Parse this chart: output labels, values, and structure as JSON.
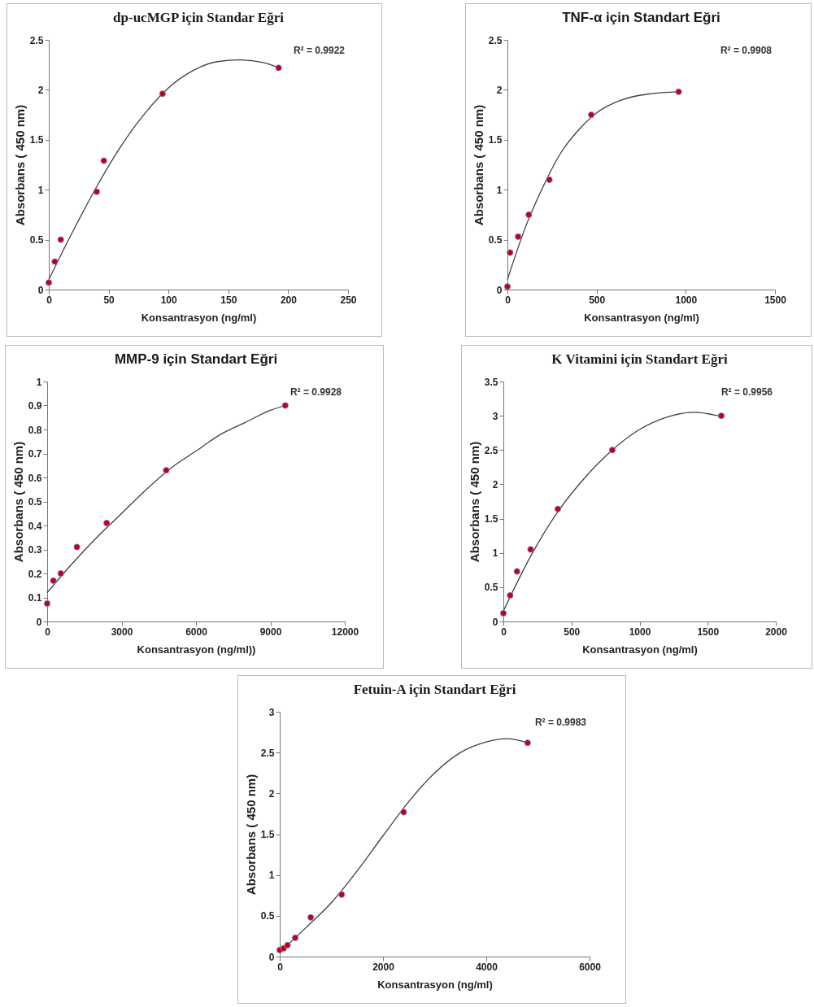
{
  "chart_data": [
    {
      "type": "scatter",
      "title": "dp-ucMGP için Standar Eğri",
      "xlabel": "Konsantrasyon (ng/ml)",
      "ylabel": "Absorbans ( 450 nm)",
      "xlim": [
        0,
        250
      ],
      "xticks": [
        0,
        50,
        100,
        150,
        200,
        250
      ],
      "ylim": [
        0,
        2.5
      ],
      "yticks": [
        0,
        0.5,
        1,
        1.5,
        2,
        2.5
      ],
      "grid": false,
      "marker": "circle",
      "annotations": [
        "R² = 0.9922"
      ],
      "series": [
        {
          "type": "line",
          "marker": "none",
          "color": "#404040",
          "x": [
            0,
            20,
            40,
            60,
            80,
            100,
            120,
            140,
            160,
            180,
            192
          ],
          "values": [
            0.1,
            0.58,
            1.03,
            1.43,
            1.76,
            2.02,
            2.19,
            2.28,
            2.3,
            2.27,
            2.22
          ]
        },
        {
          "type": "scatter",
          "color": "#c00018",
          "x": [
            0,
            5,
            10,
            40,
            46,
            95,
            192
          ],
          "values": [
            0.07,
            0.28,
            0.5,
            0.98,
            1.29,
            1.96,
            2.22
          ]
        }
      ]
    },
    {
      "type": "scatter",
      "title": "TNF-α  için Standart Eğri",
      "xlabel": "Konsantrasyon  (ng/ml)",
      "ylabel": "Absorbans ( 450 nm)",
      "xlim": [
        0,
        1500
      ],
      "xticks": [
        0,
        500,
        1000,
        1500
      ],
      "ylim": [
        0,
        2.5
      ],
      "yticks": [
        0,
        0.5,
        1,
        1.5,
        2,
        2.5
      ],
      "grid": false,
      "marker": "circle",
      "annotations": [
        "R² = 0.9908"
      ],
      "series": [
        {
          "type": "line",
          "marker": "none",
          "color": "#404040",
          "x": [
            0,
            100,
            200,
            300,
            400,
            500,
            600,
            700,
            800,
            960
          ],
          "values": [
            0.1,
            0.62,
            1.03,
            1.37,
            1.6,
            1.77,
            1.87,
            1.93,
            1.96,
            1.98
          ]
        },
        {
          "type": "scatter",
          "color": "#c00018",
          "x": [
            0,
            15,
            60,
            120,
            235,
            470,
            960
          ],
          "values": [
            0.03,
            0.37,
            0.53,
            0.75,
            1.1,
            1.75,
            1.98
          ]
        }
      ]
    },
    {
      "type": "scatter",
      "title": "MMP-9  için Standart Eğri",
      "xlabel": "Konsantrasyon  (ng/ml))",
      "ylabel": "Absorbans ( 450 nm)",
      "xlim": [
        0,
        12000
      ],
      "xticks": [
        0,
        3000,
        6000,
        9000,
        12000
      ],
      "ylim": [
        0,
        1
      ],
      "yticks": [
        0,
        0.1,
        0.2,
        0.3,
        0.4,
        0.5,
        0.6,
        0.7,
        0.8,
        0.9,
        1
      ],
      "grid": false,
      "marker": "circle",
      "annotations": [
        "R² = 0.9928"
      ],
      "series": [
        {
          "type": "line",
          "marker": "none",
          "color": "#404040",
          "x": [
            0,
            1000,
            2000,
            3000,
            4000,
            5000,
            6000,
            7000,
            8000,
            9000,
            9600
          ],
          "values": [
            0.12,
            0.24,
            0.35,
            0.45,
            0.55,
            0.64,
            0.71,
            0.78,
            0.83,
            0.88,
            0.9
          ]
        },
        {
          "type": "scatter",
          "color": "#c00018",
          "x": [
            0,
            250,
            550,
            1200,
            2400,
            4800,
            9600
          ],
          "values": [
            0.075,
            0.17,
            0.2,
            0.31,
            0.41,
            0.63,
            0.9
          ]
        }
      ]
    },
    {
      "type": "scatter",
      "title": "K Vitamini için Standart Eğri",
      "xlabel": "Konsantrasyon  (ng/ml)",
      "ylabel": "Absorbans ( 450 nm)",
      "xlim": [
        0,
        2000
      ],
      "xticks": [
        0,
        500,
        1000,
        1500,
        2000
      ],
      "ylim": [
        0,
        3.5
      ],
      "yticks": [
        0,
        0.5,
        1,
        1.5,
        2,
        2.5,
        3,
        3.5
      ],
      "grid": false,
      "marker": "circle",
      "annotations": [
        "R² = 0.9956"
      ],
      "series": [
        {
          "type": "line",
          "marker": "none",
          "color": "#404040",
          "x": [
            0,
            200,
            400,
            600,
            800,
            1000,
            1200,
            1400,
            1600
          ],
          "values": [
            0.15,
            0.95,
            1.6,
            2.1,
            2.5,
            2.8,
            2.98,
            3.05,
            2.99
          ]
        },
        {
          "type": "scatter",
          "color": "#c00018",
          "x": [
            0,
            50,
            100,
            200,
            400,
            800,
            1600
          ],
          "values": [
            0.12,
            0.38,
            0.73,
            1.05,
            1.64,
            2.5,
            3.0
          ]
        }
      ]
    },
    {
      "type": "scatter",
      "title": "Fetuin-A için Standart Eğri",
      "xlabel": "Konsantrasyon  (ng/ml)",
      "ylabel": "Absorbans  ( 450 nm)",
      "xlim": [
        0,
        6000
      ],
      "xticks": [
        0,
        2000,
        4000,
        6000
      ],
      "ylim": [
        0,
        3
      ],
      "yticks": [
        0,
        0.5,
        1,
        1.5,
        2,
        2.5,
        3
      ],
      "grid": false,
      "marker": "circle",
      "annotations": [
        "R² = 0.9983"
      ],
      "series": [
        {
          "type": "line",
          "marker": "none",
          "color": "#404040",
          "x": [
            0,
            500,
            1000,
            1500,
            2000,
            2500,
            3000,
            3500,
            4000,
            4400,
            4800
          ],
          "values": [
            0.05,
            0.35,
            0.66,
            1.05,
            1.48,
            1.9,
            2.25,
            2.5,
            2.63,
            2.67,
            2.62
          ]
        },
        {
          "type": "scatter",
          "color": "#c00018",
          "x": [
            0,
            75,
            150,
            300,
            600,
            1200,
            2400,
            4800
          ],
          "values": [
            0.08,
            0.1,
            0.14,
            0.23,
            0.48,
            0.76,
            1.77,
            2.62
          ]
        }
      ]
    }
  ]
}
